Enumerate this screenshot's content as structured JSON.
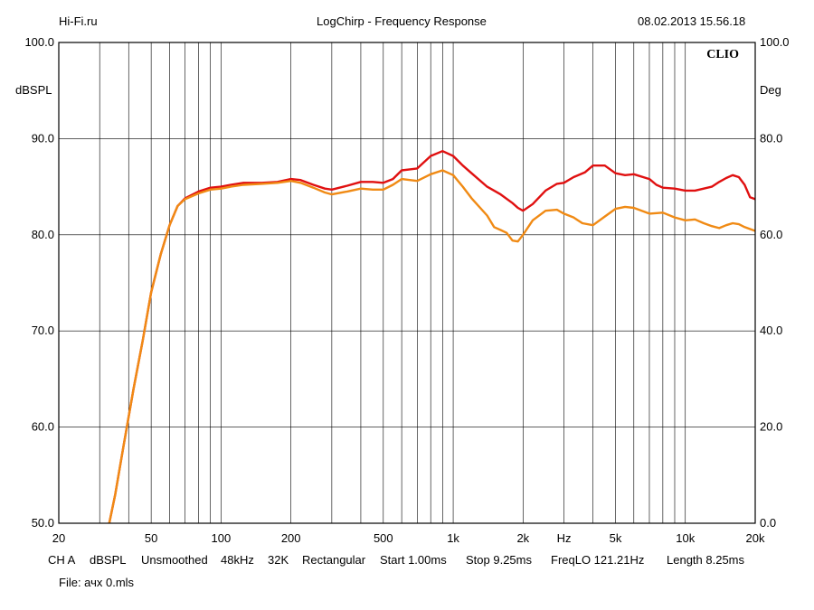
{
  "header": {
    "left": "Hi-Fi.ru",
    "title": "LogChirp - Frequency Response",
    "datetime": "08.02.2013 15.56.18"
  },
  "brand": "CLIO",
  "footer": {
    "settings": [
      "CH A",
      "dBSPL",
      "Unsmoothed",
      "48kHz",
      "32K",
      "Rectangular",
      "Start 1.00ms",
      "Stop 9.25ms",
      "FreqLO 121.21Hz",
      "Length 8.25ms"
    ],
    "file": "File: ачх 0.mls"
  },
  "colors": {
    "series_red": "#e01010",
    "series_orange": "#f08a14",
    "grid": "#000000"
  },
  "chart_data": {
    "type": "line",
    "title": "LogChirp - Frequency Response",
    "xscale": "log",
    "xlim": [
      20,
      20000
    ],
    "xlabel": "Hz",
    "x_ticks": [
      {
        "v": 20,
        "label": "20"
      },
      {
        "v": 50,
        "label": "50"
      },
      {
        "v": 100,
        "label": "100"
      },
      {
        "v": 200,
        "label": "200"
      },
      {
        "v": 500,
        "label": "500"
      },
      {
        "v": 1000,
        "label": "1k"
      },
      {
        "v": 2000,
        "label": "2k"
      },
      {
        "v": 5000,
        "label": "5k"
      },
      {
        "v": 10000,
        "label": "10k"
      },
      {
        "v": 20000,
        "label": "20k"
      }
    ],
    "ylabel": "dBSPL",
    "ylim": [
      50,
      100
    ],
    "y_ticks": [
      "100.0",
      "90.0",
      "80.0",
      "70.0",
      "60.0",
      "50.0"
    ],
    "y2label": "Deg",
    "y2lim": [
      0,
      100
    ],
    "y2_ticks": [
      "100.0",
      "80.0",
      "60.0",
      "40.0",
      "20.0",
      "0.0"
    ],
    "grid": true,
    "series": [
      {
        "color": "#e01010",
        "x": [
          33,
          35,
          38,
          42,
          46,
          50,
          55,
          60,
          65,
          70,
          80,
          90,
          100,
          110,
          125,
          150,
          175,
          200,
          220,
          250,
          280,
          300,
          350,
          400,
          450,
          500,
          550,
          600,
          650,
          700,
          800,
          900,
          1000,
          1100,
          1200,
          1400,
          1600,
          1800,
          1900,
          2000,
          2200,
          2500,
          2800,
          3000,
          3300,
          3700,
          4000,
          4500,
          5000,
          5500,
          6000,
          7000,
          7500,
          8000,
          9000,
          10000,
          11000,
          12000,
          13000,
          14000,
          15000,
          16000,
          17000,
          18000,
          19000,
          20000
        ],
        "y": [
          50,
          53,
          58,
          64,
          69,
          74,
          78,
          81,
          83,
          83.8,
          84.5,
          84.9,
          85.0,
          85.2,
          85.4,
          85.4,
          85.5,
          85.8,
          85.7,
          85.2,
          84.8,
          84.7,
          85.1,
          85.5,
          85.5,
          85.4,
          85.8,
          86.7,
          86.8,
          86.9,
          88.2,
          88.7,
          88.2,
          87.2,
          86.4,
          85.0,
          84.2,
          83.3,
          82.8,
          82.5,
          83.2,
          84.6,
          85.3,
          85.4,
          86.0,
          86.5,
          87.2,
          87.2,
          86.4,
          86.2,
          86.3,
          85.8,
          85.2,
          84.9,
          84.8,
          84.6,
          84.6,
          84.8,
          85.0,
          85.5,
          85.9,
          86.2,
          86.0,
          85.2,
          83.9,
          83.7
        ]
      },
      {
        "color": "#f08a14",
        "x": [
          33,
          35,
          38,
          42,
          46,
          50,
          55,
          60,
          65,
          70,
          80,
          90,
          100,
          110,
          125,
          150,
          175,
          200,
          220,
          250,
          280,
          300,
          350,
          400,
          450,
          500,
          550,
          600,
          650,
          700,
          800,
          900,
          1000,
          1100,
          1200,
          1400,
          1500,
          1600,
          1700,
          1800,
          1900,
          2000,
          2200,
          2500,
          2800,
          3000,
          3300,
          3600,
          4000,
          4500,
          5000,
          5500,
          6000,
          7000,
          8000,
          9000,
          10000,
          11000,
          12000,
          13000,
          14000,
          15000,
          16000,
          17000,
          18000,
          20000
        ],
        "y": [
          50,
          53,
          58,
          64,
          69,
          74,
          78,
          81,
          83,
          83.7,
          84.3,
          84.7,
          84.8,
          85.0,
          85.2,
          85.3,
          85.4,
          85.6,
          85.4,
          84.9,
          84.4,
          84.2,
          84.5,
          84.8,
          84.7,
          84.7,
          85.2,
          85.8,
          85.7,
          85.6,
          86.3,
          86.7,
          86.2,
          85.0,
          83.8,
          82.0,
          80.8,
          80.5,
          80.2,
          79.4,
          79.3,
          80.0,
          81.5,
          82.5,
          82.6,
          82.2,
          81.8,
          81.2,
          81.0,
          81.9,
          82.7,
          82.9,
          82.8,
          82.2,
          82.3,
          81.8,
          81.5,
          81.6,
          81.2,
          80.9,
          80.7,
          81.0,
          81.2,
          81.1,
          80.8,
          80.4
        ]
      }
    ]
  }
}
